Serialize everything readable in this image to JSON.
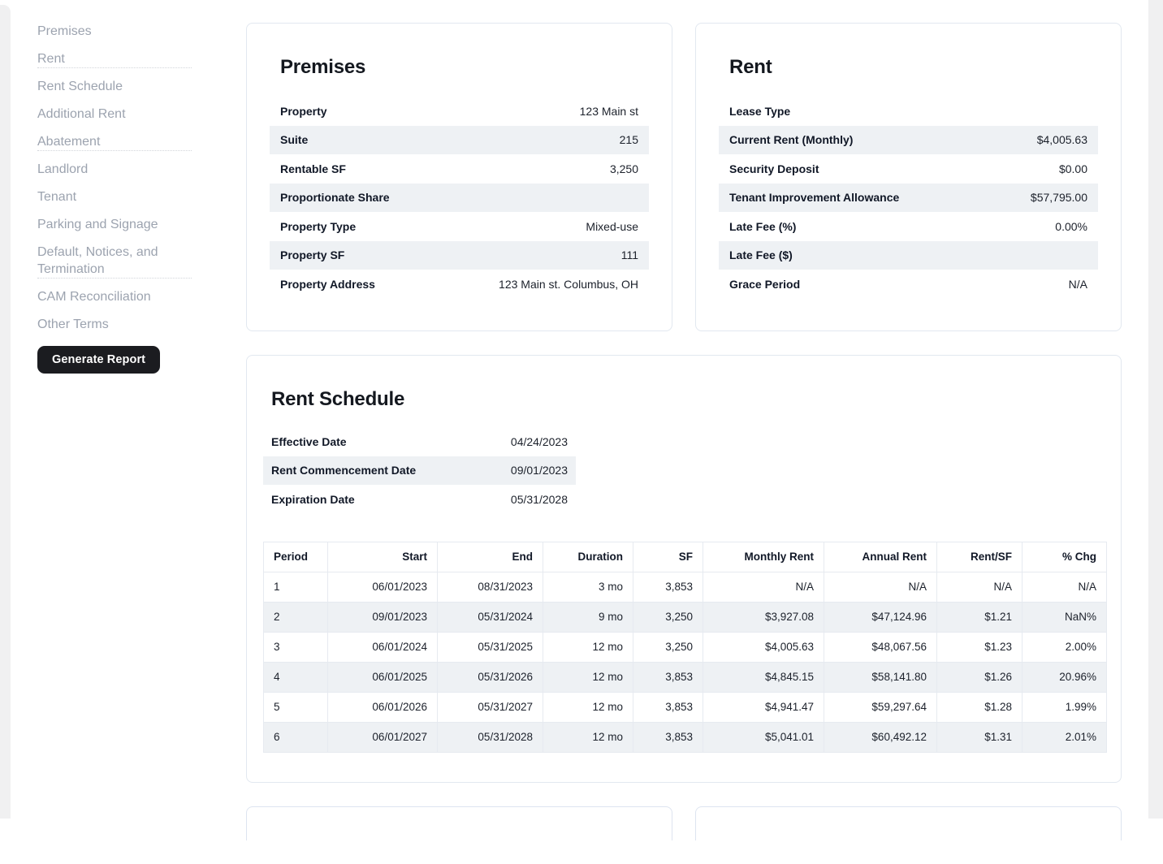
{
  "sidebar": {
    "items": [
      {
        "label": "Premises"
      },
      {
        "label": "Rent"
      },
      {
        "label": "Rent Schedule"
      },
      {
        "label": "Additional Rent"
      },
      {
        "label": "Abatement"
      },
      {
        "label": "Landlord"
      },
      {
        "label": "Tenant"
      },
      {
        "label": "Parking and Signage"
      },
      {
        "label": "Default, Notices, and Termination"
      },
      {
        "label": "CAM Reconciliation"
      },
      {
        "label": "Other Terms"
      }
    ],
    "divider_after": [
      1,
      4,
      8
    ],
    "generate_report_label": "Generate Report"
  },
  "cards": {
    "premises": {
      "title": "Premises",
      "rows": [
        {
          "label": "Property",
          "value": "123 Main st"
        },
        {
          "label": "Suite",
          "value": "215"
        },
        {
          "label": "Rentable SF",
          "value": "3,250"
        },
        {
          "label": "Proportionate Share",
          "value": ""
        },
        {
          "label": "Property Type",
          "value": "Mixed-use"
        },
        {
          "label": "Property SF",
          "value": "111"
        },
        {
          "label": "Property Address",
          "value": "123 Main st. Columbus, OH"
        }
      ]
    },
    "rent": {
      "title": "Rent",
      "rows": [
        {
          "label": "Lease Type",
          "value": ""
        },
        {
          "label": "Current Rent (Monthly)",
          "value": "$4,005.63"
        },
        {
          "label": "Security Deposit",
          "value": "$0.00"
        },
        {
          "label": "Tenant Improvement Allowance",
          "value": "$57,795.00"
        },
        {
          "label": "Late Fee (%)",
          "value": "0.00%"
        },
        {
          "label": "Late Fee ($)",
          "value": ""
        },
        {
          "label": "Grace Period",
          "value": "N/A"
        }
      ]
    },
    "rent_schedule": {
      "title": "Rent Schedule",
      "dates": [
        {
          "label": "Effective Date",
          "value": "04/24/2023"
        },
        {
          "label": "Rent Commencement Date",
          "value": "09/01/2023"
        },
        {
          "label": "Expiration Date",
          "value": "05/31/2028"
        }
      ],
      "table": {
        "headers": [
          "Period",
          "Start",
          "End",
          "Duration",
          "SF",
          "Monthly Rent",
          "Annual Rent",
          "Rent/SF",
          "% Chg"
        ],
        "rows": [
          [
            "1",
            "06/01/2023",
            "08/31/2023",
            "3 mo",
            "3,853",
            "N/A",
            "N/A",
            "N/A",
            "N/A"
          ],
          [
            "2",
            "09/01/2023",
            "05/31/2024",
            "9 mo",
            "3,250",
            "$3,927.08",
            "$47,124.96",
            "$1.21",
            "NaN%"
          ],
          [
            "3",
            "06/01/2024",
            "05/31/2025",
            "12 mo",
            "3,250",
            "$4,005.63",
            "$48,067.56",
            "$1.23",
            "2.00%"
          ],
          [
            "4",
            "06/01/2025",
            "05/31/2026",
            "12 mo",
            "3,853",
            "$4,845.15",
            "$58,141.80",
            "$1.26",
            "20.96%"
          ],
          [
            "5",
            "06/01/2026",
            "05/31/2027",
            "12 mo",
            "3,853",
            "$4,941.47",
            "$59,297.64",
            "$1.28",
            "1.99%"
          ],
          [
            "6",
            "06/01/2027",
            "05/31/2028",
            "12 mo",
            "3,853",
            "$5,041.01",
            "$60,492.12",
            "$1.31",
            "2.01%"
          ]
        ]
      }
    }
  },
  "colors": {
    "stripe_row": "#eef1f4",
    "card_border": "#e2e8f0",
    "button_bg": "#1b1c20",
    "sidebar_text": "#9ca3af",
    "edge_strip": "#f0f0f1"
  }
}
